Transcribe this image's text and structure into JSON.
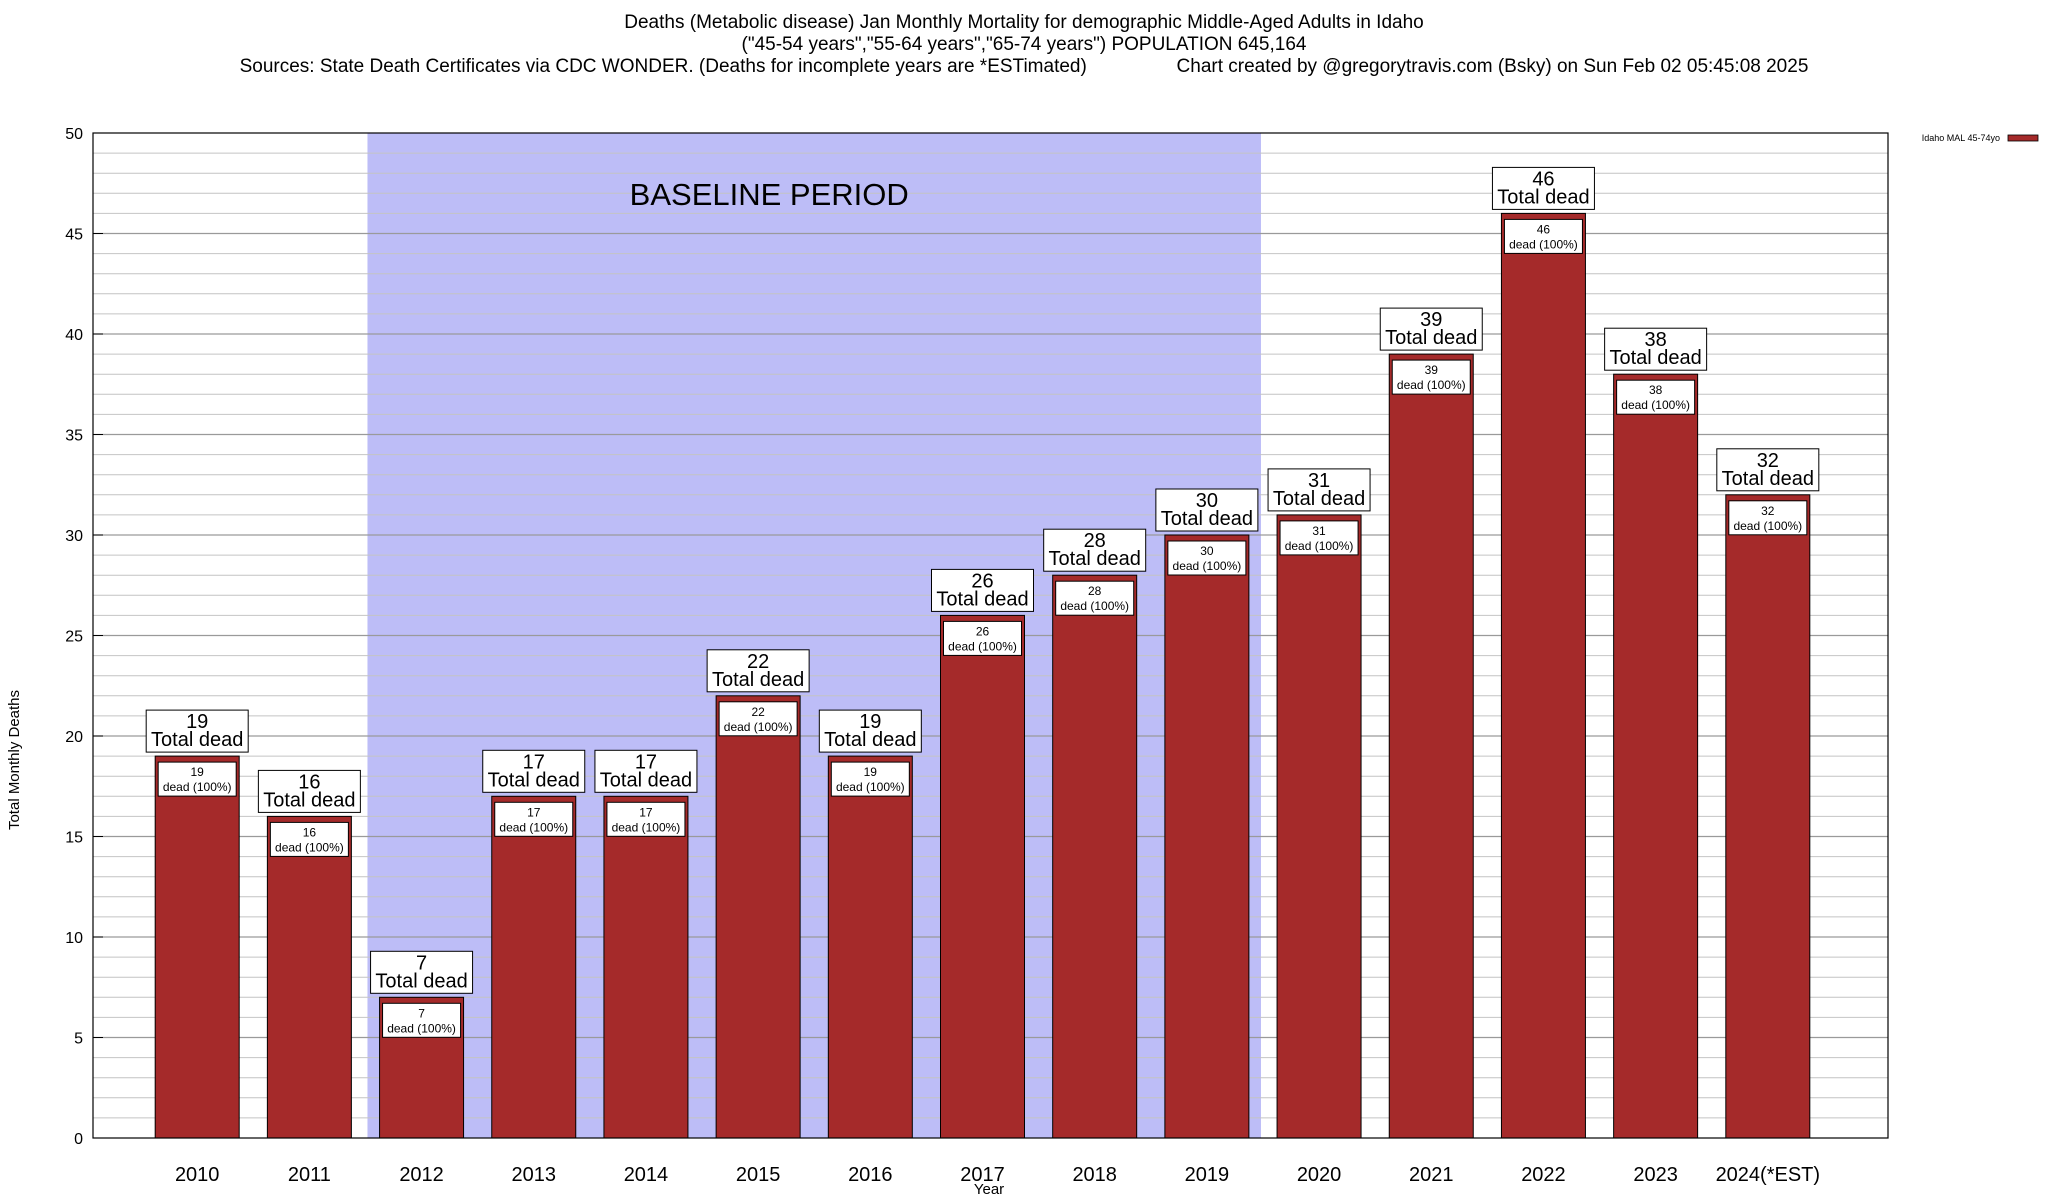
{
  "header": {
    "title_line1": "Deaths (Metabolic disease) Jan Monthly Mortality for demographic Middle-Aged Adults in Idaho",
    "title_line2": "(\"45-54 years\",\"55-64 years\",\"65-74 years\") POPULATION 645,164",
    "title_line3": "Sources: State Death Certificates via CDC WONDER. (Deaths for incomplete years are *ESTimated)                 Chart created by @gregorytravis.com (Bsky) on Sun Feb 02 05:45:08 2025"
  },
  "chart_data": {
    "type": "bar",
    "xlabel": "Year",
    "ylabel": "Total Monthly Deaths",
    "ylim": [
      0,
      50
    ],
    "y_major_ticks": [
      0,
      5,
      10,
      15,
      20,
      25,
      30,
      35,
      40,
      45,
      50
    ],
    "y_minor_step": 1,
    "grid": true,
    "legend_position": "top-right",
    "categories": [
      "2010",
      "2011",
      "2012",
      "2013",
      "2014",
      "2015",
      "2016",
      "2017",
      "2018",
      "2019",
      "2020",
      "2021",
      "2022",
      "2023",
      "2024(*EST)"
    ],
    "series": [
      {
        "name": "Idaho MAL 45-74yo",
        "color": "#a52a2a",
        "values": [
          19,
          16,
          7,
          17,
          17,
          22,
          19,
          26,
          28,
          30,
          31,
          39,
          46,
          38,
          32
        ]
      }
    ],
    "total_label": "Total dead",
    "inner_label": "dead (100%)",
    "baseline_region": {
      "label": "BASELINE PERIOD",
      "from_category": "2012",
      "to_category": "2019",
      "color": "#bdbdf7"
    }
  }
}
